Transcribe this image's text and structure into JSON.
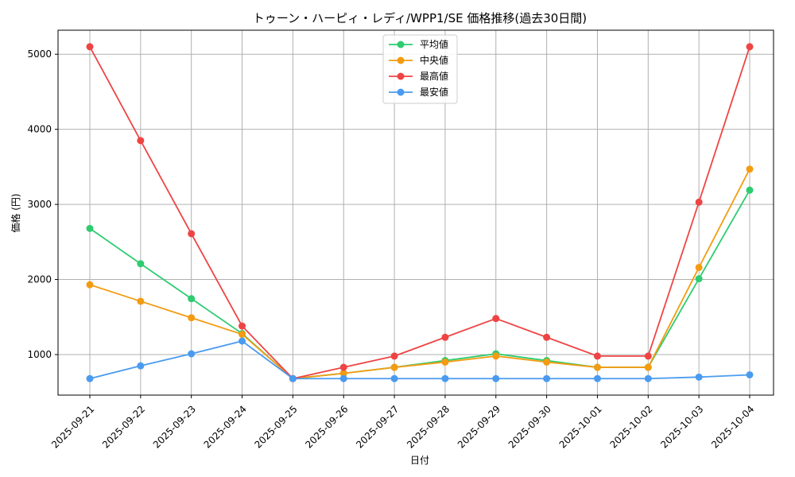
{
  "chart_data": {
    "type": "line",
    "title": "トゥーン・ハーピィ・レディ/WPP1/SE 価格推移(過去30日間)",
    "xlabel": "日付",
    "ylabel": "価格 (円)",
    "categories": [
      "2025-09-21",
      "2025-09-22",
      "2025-09-23",
      "2025-09-24",
      "2025-09-25",
      "2025-09-26",
      "2025-09-27",
      "2025-09-28",
      "2025-09-29",
      "2025-09-30",
      "2025-10-01",
      "2025-10-02",
      "2025-10-03",
      "2025-10-04"
    ],
    "yticks": [
      1000,
      2000,
      3000,
      4000,
      5000
    ],
    "ylim": [
      460,
      5320
    ],
    "grid": true,
    "legend_position": "top-center",
    "series": [
      {
        "name": "平均値",
        "color": "#2ecc71",
        "values": [
          2680,
          2210,
          1745,
          1280,
          680,
          750,
          830,
          920,
          1010,
          920,
          830,
          830,
          2010,
          3190
        ]
      },
      {
        "name": "中央値",
        "color": "#f39c12",
        "values": [
          1930,
          1710,
          1490,
          1270,
          680,
          750,
          830,
          900,
          980,
          900,
          830,
          830,
          2160,
          3470
        ]
      },
      {
        "name": "最高値",
        "color": "#ef4444",
        "values": [
          5100,
          3850,
          2610,
          1380,
          680,
          830,
          980,
          1230,
          1480,
          1230,
          980,
          980,
          3030,
          5100
        ]
      },
      {
        "name": "最安値",
        "color": "#4a9bef",
        "values": [
          680,
          850,
          1010,
          1180,
          680,
          680,
          680,
          680,
          680,
          680,
          680,
          680,
          700,
          730
        ]
      }
    ]
  }
}
